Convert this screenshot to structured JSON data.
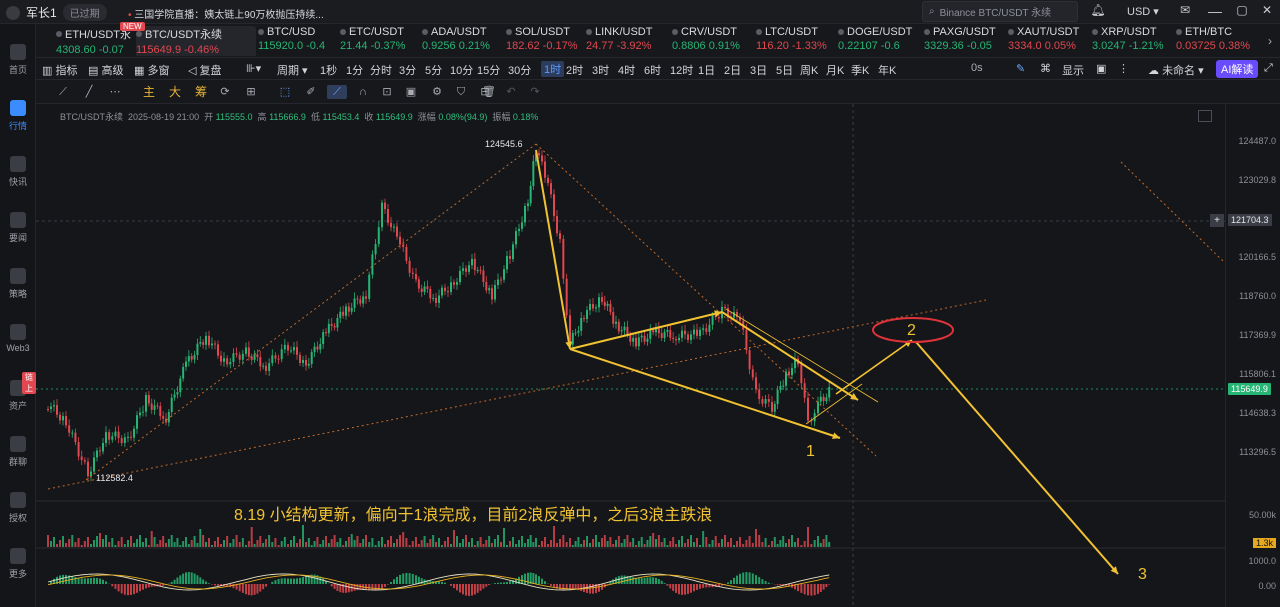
{
  "topbar": {
    "username": "军长1",
    "status": "已过期",
    "news": "三国学院直播：姨太链上90万枚抛压持续...",
    "search_placeholder": "Binance BTC/USDT 永续",
    "currency": "USD"
  },
  "sidebar": [
    {
      "label": "首页",
      "icon": "home-icon"
    },
    {
      "label": "行情",
      "icon": "chart-icon",
      "active": true
    },
    {
      "label": "快讯",
      "icon": "flash-news-icon"
    },
    {
      "label": "要闻",
      "icon": "news-icon"
    },
    {
      "label": "策略",
      "icon": "strategy-icon"
    },
    {
      "label": "Web3",
      "icon": "web3-icon"
    },
    {
      "label": "资产",
      "icon": "wallet-icon",
      "badge": "链上"
    },
    {
      "label": "群聊",
      "icon": "chat-icon"
    },
    {
      "label": "授权",
      "icon": "license-icon"
    },
    {
      "label": "更多",
      "icon": "more-icon"
    }
  ],
  "tickers": [
    {
      "symbol": "ETH/USDT永",
      "price": "4308.60",
      "change": "-0.07",
      "dir": "up"
    },
    {
      "symbol": "BTC/USDT永续",
      "price": "115649.9",
      "change": "-0.46%",
      "dir": "dn",
      "active": true,
      "badge": "NEW"
    },
    {
      "symbol": "BTC/USD",
      "price": "115920.0",
      "change": "-0.4",
      "dir": "up"
    },
    {
      "symbol": "ETC/USDT",
      "price": "21.44",
      "change": "-0.37%",
      "dir": "up"
    },
    {
      "symbol": "ADA/USDT",
      "price": "0.9256",
      "change": "0.21%",
      "dir": "up"
    },
    {
      "symbol": "SOL/USDT",
      "price": "182.62",
      "change": "-0.17%",
      "dir": "dn"
    },
    {
      "symbol": "LINK/USDT",
      "price": "24.77",
      "change": "-3.92%",
      "dir": "dn"
    },
    {
      "symbol": "CRV/USDT",
      "price": "0.8806",
      "change": "0.91%",
      "dir": "up"
    },
    {
      "symbol": "LTC/USDT",
      "price": "116.20",
      "change": "-1.33%",
      "dir": "dn"
    },
    {
      "symbol": "DOGE/USDT",
      "price": "0.22107",
      "change": "-0.6",
      "dir": "up"
    },
    {
      "symbol": "PAXG/USDT",
      "price": "3329.36",
      "change": "-0.05",
      "dir": "up"
    },
    {
      "symbol": "XAUT/USDT",
      "price": "3334.0",
      "change": "0.05%",
      "dir": "dn"
    },
    {
      "symbol": "XRP/USDT",
      "price": "3.0247",
      "change": "-1.21%",
      "dir": "up"
    },
    {
      "symbol": "ETH/BTC",
      "price": "0.03725",
      "change": "0.38%",
      "dir": "dn"
    }
  ],
  "toolbar": {
    "indicator": "指标",
    "advanced": "高级",
    "multiwin": "多窗",
    "replay": "复盘",
    "period_label": "周期",
    "periods": [
      "1秒",
      "1分",
      "分时",
      "3分",
      "5分",
      "10分",
      "15分",
      "30分",
      "1时",
      "2时",
      "3时",
      "4时",
      "6时",
      "12时",
      "1日",
      "2日",
      "3日",
      "5日",
      "周K",
      "月K",
      "季K",
      "年K"
    ],
    "selected_period": "1时",
    "timer": "0s",
    "display": "显示",
    "unnamed": "未命名",
    "ai": "AI解读",
    "draw_main": [
      "主",
      "大",
      "筹"
    ]
  },
  "legend": {
    "title": "BTC/USDT永续",
    "time": "2025-08-19 21:00",
    "open_label": "开",
    "open": "115555.0",
    "high_label": "高",
    "high": "115666.9",
    "low_label": "低",
    "low": "115453.4",
    "close_label": "收",
    "close": "115649.9",
    "change_label": "涨幅",
    "change": "0.08%(94.9)",
    "amp_label": "振幅",
    "amp": "0.18%"
  },
  "axis": {
    "ticks": [
      "124487.0",
      "123029.8",
      "121704.3",
      "120166.5",
      "118760.0",
      "117369.9",
      "115806.1",
      "114638.3",
      "113296.5"
    ],
    "crosshair_price": "121704.3",
    "last_price": "115649.9",
    "volume_ticks": [
      "50.00k",
      "1.3k"
    ],
    "macd_ticks": [
      "1000.0",
      "0.00"
    ]
  },
  "annotations": {
    "high_label": "124545.6",
    "low_label": "112582.4",
    "wave1": "1",
    "wave2": "2",
    "wave3": "3",
    "note": "8.19 小结构更新，偏向于1浪完成，目前2浪反弹中，之后3浪主跌浪"
  },
  "colors": {
    "up": "#26b574",
    "down": "#e0474f",
    "accent": "#3b8cff",
    "annotation": "#f1c232",
    "ellipse": "#e0323a"
  }
}
